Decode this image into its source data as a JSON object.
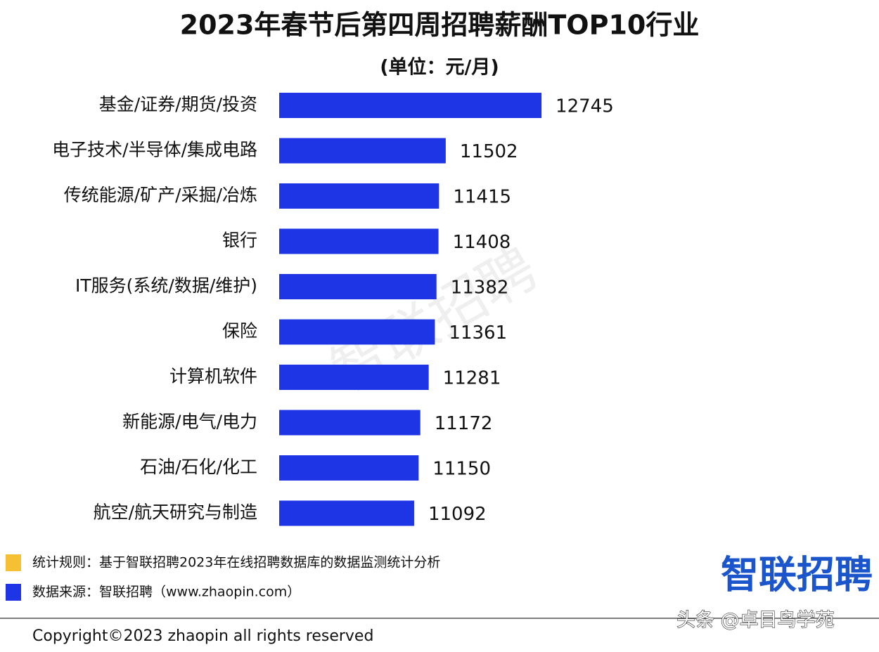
{
  "chart_data": {
    "type": "bar",
    "orientation": "horizontal",
    "title": "2023年春节后第四周招聘薪酬TOP10行业",
    "subtitle": "(单位：元/月)",
    "categories": [
      "基金/证券/期货/投资",
      "电子技术/半导体/集成电路",
      "传统能源/矿产/采掘/冶炼",
      "银行",
      "IT服务(系统/数据/维护)",
      "保险",
      "计算机软件",
      "新能源/电气/电力",
      "石油/石化/化工",
      "航空/航天研究与制造"
    ],
    "values": [
      12745,
      11502,
      11415,
      11408,
      11382,
      11361,
      11281,
      11172,
      11150,
      11092
    ],
    "color": "#1e35e6",
    "xlim": [
      9340,
      13000
    ]
  },
  "notes": [
    {
      "color": "#f5c033",
      "text": "统计规则：基于智联招聘2023年在线招聘数据库的数据监测统计分析"
    },
    {
      "color": "#1e35e6",
      "text": "数据来源：智联招聘（www.zhaopin.com）"
    }
  ],
  "logo": "智联招聘",
  "watermark": "智联招聘",
  "copyright": "Copyright©2023 zhaopin all rights reserved",
  "source_mark": "头条 @卓目鸟学苑"
}
